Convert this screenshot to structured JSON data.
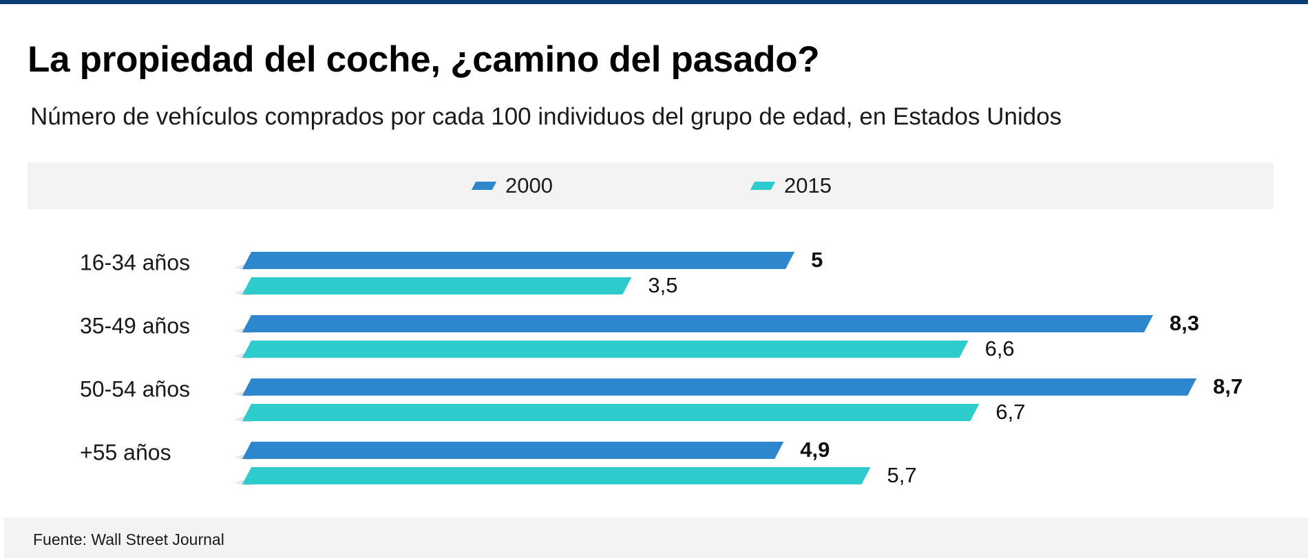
{
  "title": "La propiedad del coche, ¿camino del pasado?",
  "subtitle": "Número de vehículos comprados por cada 100 individuos del grupo de edad, en Estados Unidos",
  "source": "Fuente: Wall Street Journal",
  "colors": {
    "s2000": "#2e86cc",
    "s2015": "#2ecbcd",
    "topbar": "#0a3d73",
    "band": "#f3f3f3"
  },
  "legend_position": "top",
  "chart_data": {
    "type": "bar",
    "orientation": "horizontal",
    "categories": [
      "16-34 años",
      "35-49 años",
      "50-54 años",
      "+55 años"
    ],
    "series": [
      {
        "name": "2000",
        "values": [
          5,
          8.3,
          8.7,
          4.9
        ],
        "labels": [
          "5",
          "8,3",
          "8,7",
          "4,9"
        ],
        "color": "#2e86cc"
      },
      {
        "name": "2015",
        "values": [
          3.5,
          6.6,
          6.7,
          5.7
        ],
        "labels": [
          "3,5",
          "6,6",
          "6,7",
          "5,7"
        ],
        "color": "#2ecbcd"
      }
    ],
    "xlim": [
      0,
      8.7
    ],
    "grid": false,
    "title": "La propiedad del coche, ¿camino del pasado?",
    "subtitle": "Número de vehículos comprados por cada 100 individuos del grupo de edad, en Estados Unidos"
  }
}
